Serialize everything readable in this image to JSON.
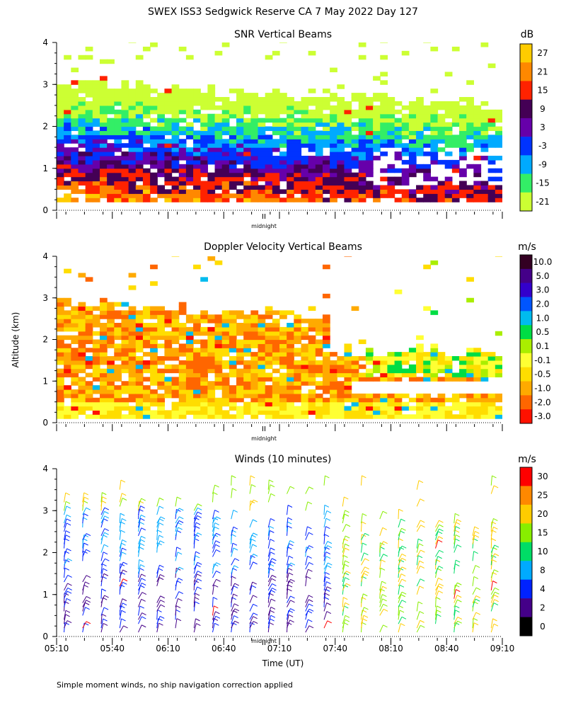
{
  "figure": {
    "title": "SWEX ISS3 Sedgwick Reserve CA   7 May 2022 Day 127",
    "ylabel": "Altitude (km)",
    "xlabel": "Time (UT)",
    "footnote": "Simple moment winds, no ship navigation correction applied",
    "midnight_label": "midnight"
  },
  "chart_data": [
    {
      "type": "heatmap",
      "title": "SNR Vertical Beams",
      "ylim": [
        0,
        4
      ],
      "yticks": [
        "0",
        "1",
        "2",
        "3",
        "4"
      ],
      "x_time_range": [
        "05:10",
        "09:10"
      ],
      "colorbar": {
        "unit": "dB",
        "labels": [
          "27",
          "21",
          "15",
          "9",
          "3",
          "-3",
          "-9",
          "-15",
          "-21"
        ],
        "colors": [
          "#ffcc00",
          "#ff8800",
          "#ff2200",
          "#440055",
          "#6600aa",
          "#0033ff",
          "#00aaff",
          "#33ee66",
          "#ccff33"
        ]
      }
    },
    {
      "type": "heatmap",
      "title": "Doppler Velocity Vertical Beams",
      "ylim": [
        0,
        4
      ],
      "yticks": [
        "0",
        "1",
        "2",
        "3",
        "4"
      ],
      "x_time_range": [
        "05:10",
        "09:10"
      ],
      "colorbar": {
        "unit": "m/s",
        "labels": [
          "10.0",
          "5.0",
          "3.0",
          "2.0",
          "1.0",
          "0.5",
          "0.1",
          "-0.1",
          "-0.5",
          "-1.0",
          "-2.0",
          "-3.0"
        ],
        "colors": [
          "#330022",
          "#440088",
          "#3300cc",
          "#0055ff",
          "#00bbee",
          "#00dd44",
          "#aaee00",
          "#ffff33",
          "#ffdd00",
          "#ffaa00",
          "#ff6600",
          "#ff1100"
        ]
      }
    },
    {
      "type": "scatter",
      "title": "Winds (10 minutes)",
      "ylim": [
        0,
        4
      ],
      "yticks": [
        "0",
        "1",
        "2",
        "3",
        "4"
      ],
      "x_ticklabels": [
        "05:10",
        "05:40",
        "06:10",
        "06:40",
        "07:10",
        "07:40",
        "08:10",
        "08:40",
        "09:10"
      ],
      "colorbar": {
        "unit": "m/s",
        "labels": [
          "30",
          "25",
          "20",
          "15",
          "10",
          "8",
          "4",
          "2",
          "0"
        ],
        "colors": [
          "#ff0000",
          "#ff8800",
          "#ffcc00",
          "#88ee00",
          "#00dd66",
          "#00aaff",
          "#0022ff",
          "#440088",
          "#000000"
        ]
      }
    }
  ]
}
